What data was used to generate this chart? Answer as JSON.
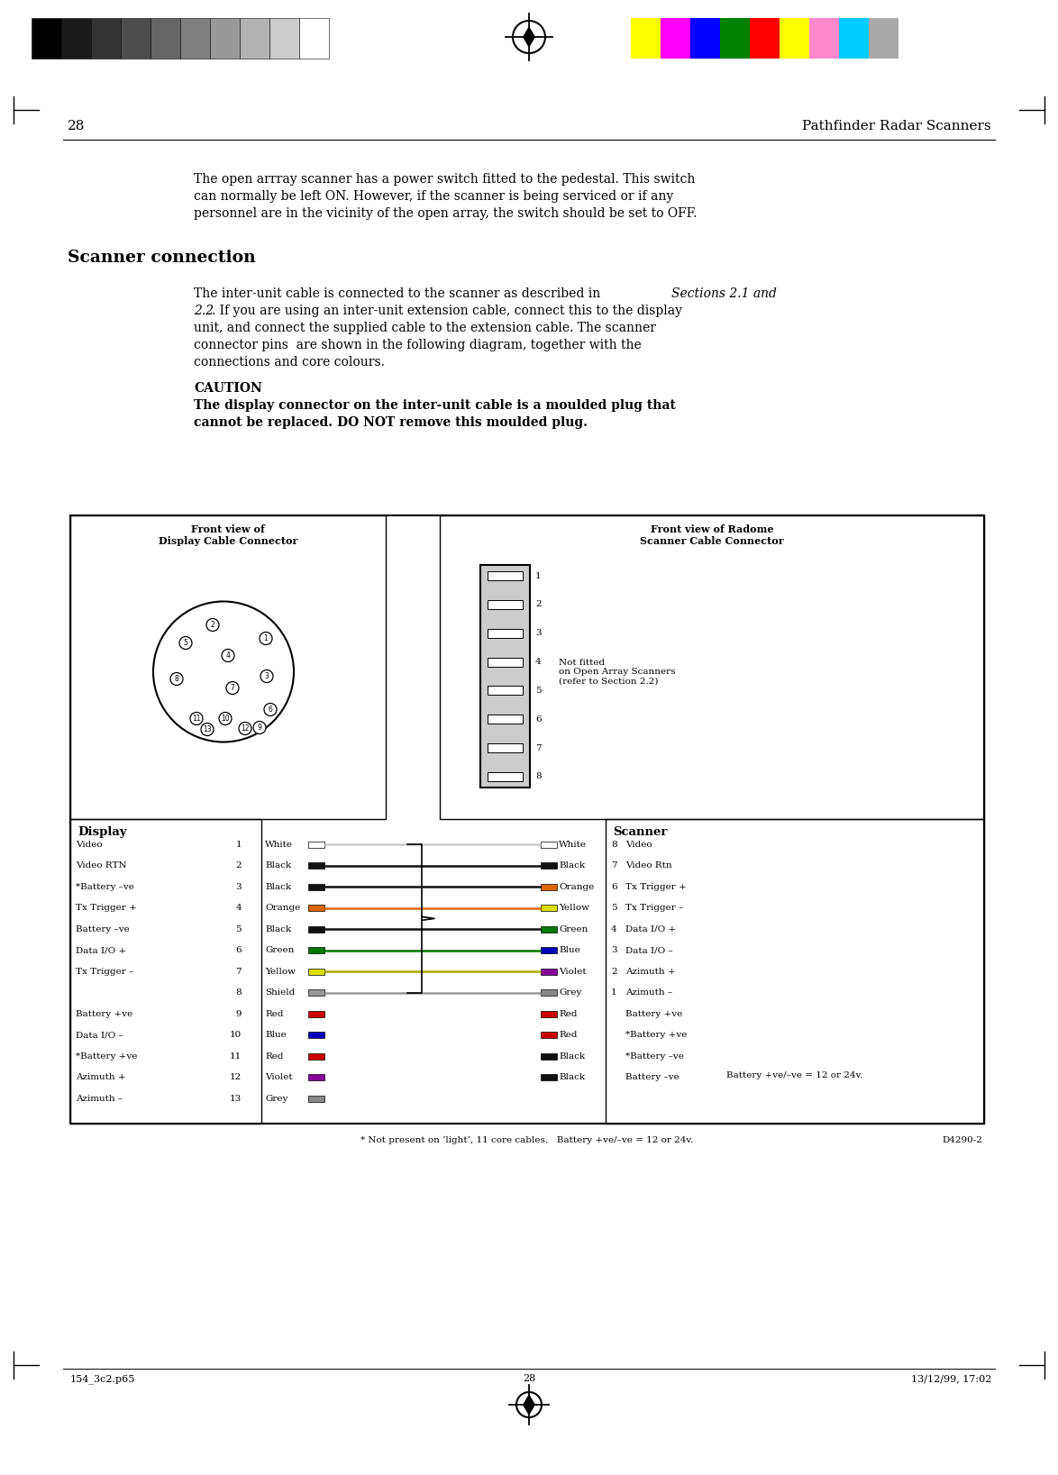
{
  "page_number": "28",
  "header_right": "Pathfinder Radar Scanners",
  "footer_left": "154_3c2.p65",
  "footer_center": "28",
  "footer_right": "13/12/99, 17:02",
  "bg_color": "#ffffff",
  "body_text1_lines": [
    "The open arrray scanner has a power switch fitted to the pedestal. This switch",
    "can normally be left ON. However, if the scanner is being serviced or if any",
    "personnel are in the vicinity of the open array, the switch should be set to OFF."
  ],
  "section_title": "Scanner connection",
  "body_text2_lines": [
    [
      "The inter-unit cable is connected to the scanner as described in ",
      "Sections 2.1 and",
      ""
    ],
    [
      "2.2",
      ". If you are using an inter-unit extension cable, connect this to the display",
      ""
    ],
    [
      "unit, and connect the supplied cable to the extension cable. The scanner",
      "",
      ""
    ],
    [
      "connector pins  are shown in the following diagram, together with the",
      "",
      ""
    ],
    [
      "connections and core colours.",
      "",
      ""
    ]
  ],
  "caution_label": "CAUTION",
  "caution_lines": [
    "The display connector on the inter-unit cable is a moulded plug that",
    "cannot be replaced. DO NOT remove this moulded plug."
  ],
  "display_label": "Display",
  "scanner_label": "Scanner",
  "front_view_display": "Front view of\nDisplay Cable Connector",
  "front_view_radome": "Front view of Radome\nScanner Cable Connector",
  "not_fitted_text": "Not fitted\non Open Array Scanners\n(refer to Section 2.2)",
  "footnote": "* Not present on ‘light’, 11 core cables.   Battery +ve/–ve = 12 or 24v.",
  "ref_code": "D4290-2",
  "display_pins": [
    {
      "num": "1",
      "label": "Video",
      "color_name": "White"
    },
    {
      "num": "2",
      "label": "Video RTN",
      "color_name": "Black"
    },
    {
      "num": "3",
      "label": "*Battery –ve",
      "color_name": "Black"
    },
    {
      "num": "4",
      "label": "Tx Trigger +",
      "color_name": "Orange"
    },
    {
      "num": "5",
      "label": "Battery –ve",
      "color_name": "Black"
    },
    {
      "num": "6",
      "label": "Data I/O +",
      "color_name": "Green"
    },
    {
      "num": "7",
      "label": "Tx Trigger –",
      "color_name": "Yellow"
    },
    {
      "num": "8",
      "label": "",
      "color_name": "Shield"
    },
    {
      "num": "9",
      "label": "Battery +ve",
      "color_name": "Red"
    },
    {
      "num": "10",
      "label": "Data I/O –",
      "color_name": "Blue"
    },
    {
      "num": "11",
      "label": "*Battery +ve",
      "color_name": "Red"
    },
    {
      "num": "12",
      "label": "Azimuth +",
      "color_name": "Violet"
    },
    {
      "num": "13",
      "label": "Azimuth –",
      "color_name": "Grey"
    }
  ],
  "scanner_pins_top": [
    {
      "num": "8",
      "label": "Video",
      "color_name": "White"
    },
    {
      "num": "7",
      "label": "Video Rtn",
      "color_name": "Black"
    },
    {
      "num": "6",
      "label": "Tx Trigger +",
      "color_name": "Orange"
    },
    {
      "num": "5",
      "label": "Tx Trigger –",
      "color_name": "Yellow"
    },
    {
      "num": "4",
      "label": "Data I/O +",
      "color_name": "Green"
    },
    {
      "num": "3",
      "label": "Data I/O –",
      "color_name": "Blue"
    },
    {
      "num": "2",
      "label": "Azimuth +",
      "color_name": "Violet"
    },
    {
      "num": "1",
      "label": "Azimuth –",
      "color_name": "Grey"
    }
  ],
  "scanner_pins_bot": [
    {
      "label": "Battery +ve",
      "color_name": "Red"
    },
    {
      "label": "*Battery +ve",
      "color_name": "Red"
    },
    {
      "label": "*Battery –ve",
      "color_name": "Black"
    },
    {
      "label": "Battery –ve",
      "color_name": "Black"
    }
  ],
  "color_map": {
    "White": "#ffffff",
    "Black": "#111111",
    "Orange": "#dd6600",
    "Green": "#007700",
    "Yellow": "#dddd00",
    "Shield": "#999999",
    "Red": "#cc0000",
    "Blue": "#0000bb",
    "Violet": "#880099",
    "Grey": "#888888"
  },
  "color_bars_left": [
    "#000000",
    "#1a1a1a",
    "#333333",
    "#4d4d4d",
    "#666666",
    "#808080",
    "#999999",
    "#b3b3b3",
    "#cccccc",
    "#ffffff"
  ],
  "color_bars_right": [
    "#ffff00",
    "#ff00ff",
    "#0000ff",
    "#008000",
    "#ff0000",
    "#ffff00",
    "#ff88cc",
    "#00ccff",
    "#aaaaaa"
  ]
}
